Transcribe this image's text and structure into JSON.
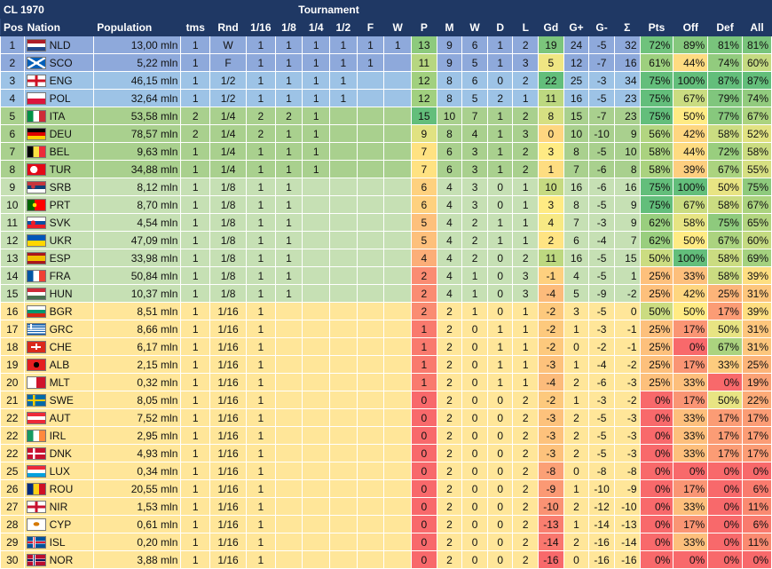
{
  "title": "CL 1970",
  "tournament_label": "Tournament",
  "headers": [
    "Pos",
    "Nation",
    "Population",
    "tms",
    "Rnd",
    "1/16",
    "1/8",
    "1/4",
    "1/2",
    "F",
    "W",
    "P",
    "M",
    "W",
    "D",
    "L",
    "Gd",
    "G+",
    "G-",
    "Σ",
    "Pts",
    "Off",
    "Def",
    "All"
  ],
  "colors": {
    "header": "#1f3864",
    "row_final": "#8ea9db",
    "row_semi": "#9dc3e6",
    "row_quarter": "#a9d08e",
    "row_eighth": "#c6e0b4",
    "row_sixteenth": "#ffe699",
    "scale_green": "#63be7b",
    "scale_yellow": "#ffeb84",
    "scale_red": "#f8696b"
  },
  "rows": [
    {
      "pos": "1",
      "code": "NLD",
      "flag": "nld-flag-icon",
      "pop": "13,00 mln",
      "tms": "1",
      "rnd": "W",
      "rounds": [
        "1",
        "1",
        "1",
        "1",
        "1",
        "1"
      ],
      "p": "13",
      "m": "9",
      "w": "6",
      "d": "1",
      "l": "2",
      "gd": "19",
      "gp": "24",
      "gm": "-5",
      "sig": "32",
      "pts": "72%",
      "off": "89%",
      "def": "81%",
      "all": "81%"
    },
    {
      "pos": "2",
      "code": "SCO",
      "flag": "sco-flag-icon",
      "pop": "5,22 mln",
      "tms": "1",
      "rnd": "F",
      "rounds": [
        "1",
        "1",
        "1",
        "1",
        "1",
        ""
      ],
      "p": "11",
      "m": "9",
      "w": "5",
      "d": "1",
      "l": "3",
      "gd": "5",
      "gp": "12",
      "gm": "-7",
      "sig": "16",
      "pts": "61%",
      "off": "44%",
      "def": "74%",
      "all": "60%"
    },
    {
      "pos": "3",
      "code": "ENG",
      "flag": "eng-flag-icon",
      "pop": "46,15 mln",
      "tms": "1",
      "rnd": "1/2",
      "rounds": [
        "1",
        "1",
        "1",
        "1",
        "",
        ""
      ],
      "p": "12",
      "m": "8",
      "w": "6",
      "d": "0",
      "l": "2",
      "gd": "22",
      "gp": "25",
      "gm": "-3",
      "sig": "34",
      "pts": "75%",
      "off": "100%",
      "def": "87%",
      "all": "87%"
    },
    {
      "pos": "4",
      "code": "POL",
      "flag": "pol-flag-icon",
      "pop": "32,64 mln",
      "tms": "1",
      "rnd": "1/2",
      "rounds": [
        "1",
        "1",
        "1",
        "1",
        "",
        ""
      ],
      "p": "12",
      "m": "8",
      "w": "5",
      "d": "2",
      "l": "1",
      "gd": "11",
      "gp": "16",
      "gm": "-5",
      "sig": "23",
      "pts": "75%",
      "off": "67%",
      "def": "79%",
      "all": "74%"
    },
    {
      "pos": "5",
      "code": "ITA",
      "flag": "ita-flag-icon",
      "pop": "53,58 mln",
      "tms": "2",
      "rnd": "1/4",
      "rounds": [
        "2",
        "2",
        "1",
        "",
        "",
        ""
      ],
      "p": "15",
      "m": "10",
      "w": "7",
      "d": "1",
      "l": "2",
      "gd": "8",
      "gp": "15",
      "gm": "-7",
      "sig": "23",
      "pts": "75%",
      "off": "50%",
      "def": "77%",
      "all": "67%"
    },
    {
      "pos": "6",
      "code": "DEU",
      "flag": "deu-flag-icon",
      "pop": "78,57 mln",
      "tms": "2",
      "rnd": "1/4",
      "rounds": [
        "2",
        "1",
        "1",
        "",
        "",
        ""
      ],
      "p": "9",
      "m": "8",
      "w": "4",
      "d": "1",
      "l": "3",
      "gd": "0",
      "gp": "10",
      "gm": "-10",
      "sig": "9",
      "pts": "56%",
      "off": "42%",
      "def": "58%",
      "all": "52%"
    },
    {
      "pos": "7",
      "code": "BEL",
      "flag": "bel-flag-icon",
      "pop": "9,63 mln",
      "tms": "1",
      "rnd": "1/4",
      "rounds": [
        "1",
        "1",
        "1",
        "",
        "",
        ""
      ],
      "p": "7",
      "m": "6",
      "w": "3",
      "d": "1",
      "l": "2",
      "gd": "3",
      "gp": "8",
      "gm": "-5",
      "sig": "10",
      "pts": "58%",
      "off": "44%",
      "def": "72%",
      "all": "58%"
    },
    {
      "pos": "8",
      "code": "TUR",
      "flag": "tur-flag-icon",
      "pop": "34,88 mln",
      "tms": "1",
      "rnd": "1/4",
      "rounds": [
        "1",
        "1",
        "1",
        "",
        "",
        ""
      ],
      "p": "7",
      "m": "6",
      "w": "3",
      "d": "1",
      "l": "2",
      "gd": "1",
      "gp": "7",
      "gm": "-6",
      "sig": "8",
      "pts": "58%",
      "off": "39%",
      "def": "67%",
      "all": "55%"
    },
    {
      "pos": "9",
      "code": "SRB",
      "flag": "srb-flag-icon",
      "pop": "8,12 mln",
      "tms": "1",
      "rnd": "1/8",
      "rounds": [
        "1",
        "1",
        "",
        "",
        "",
        ""
      ],
      "p": "6",
      "m": "4",
      "w": "3",
      "d": "0",
      "l": "1",
      "gd": "10",
      "gp": "16",
      "gm": "-6",
      "sig": "16",
      "pts": "75%",
      "off": "100%",
      "def": "50%",
      "all": "75%"
    },
    {
      "pos": "10",
      "code": "PRT",
      "flag": "prt-flag-icon",
      "pop": "8,70 mln",
      "tms": "1",
      "rnd": "1/8",
      "rounds": [
        "1",
        "1",
        "",
        "",
        "",
        ""
      ],
      "p": "6",
      "m": "4",
      "w": "3",
      "d": "0",
      "l": "1",
      "gd": "3",
      "gp": "8",
      "gm": "-5",
      "sig": "9",
      "pts": "75%",
      "off": "67%",
      "def": "58%",
      "all": "67%"
    },
    {
      "pos": "11",
      "code": "SVK",
      "flag": "svk-flag-icon",
      "pop": "4,54 mln",
      "tms": "1",
      "rnd": "1/8",
      "rounds": [
        "1",
        "1",
        "",
        "",
        "",
        ""
      ],
      "p": "5",
      "m": "4",
      "w": "2",
      "d": "1",
      "l": "1",
      "gd": "4",
      "gp": "7",
      "gm": "-3",
      "sig": "9",
      "pts": "62%",
      "off": "58%",
      "def": "75%",
      "all": "65%"
    },
    {
      "pos": "12",
      "code": "UKR",
      "flag": "ukr-flag-icon",
      "pop": "47,09 mln",
      "tms": "1",
      "rnd": "1/8",
      "rounds": [
        "1",
        "1",
        "",
        "",
        "",
        ""
      ],
      "p": "5",
      "m": "4",
      "w": "2",
      "d": "1",
      "l": "1",
      "gd": "2",
      "gp": "6",
      "gm": "-4",
      "sig": "7",
      "pts": "62%",
      "off": "50%",
      "def": "67%",
      "all": "60%"
    },
    {
      "pos": "13",
      "code": "ESP",
      "flag": "esp-flag-icon",
      "pop": "33,98 mln",
      "tms": "1",
      "rnd": "1/8",
      "rounds": [
        "1",
        "1",
        "",
        "",
        "",
        ""
      ],
      "p": "4",
      "m": "4",
      "w": "2",
      "d": "0",
      "l": "2",
      "gd": "11",
      "gp": "16",
      "gm": "-5",
      "sig": "15",
      "pts": "50%",
      "off": "100%",
      "def": "58%",
      "all": "69%"
    },
    {
      "pos": "14",
      "code": "FRA",
      "flag": "fra-flag-icon",
      "pop": "50,84 mln",
      "tms": "1",
      "rnd": "1/8",
      "rounds": [
        "1",
        "1",
        "",
        "",
        "",
        ""
      ],
      "p": "2",
      "m": "4",
      "w": "1",
      "d": "0",
      "l": "3",
      "gd": "-1",
      "gp": "4",
      "gm": "-5",
      "sig": "1",
      "pts": "25%",
      "off": "33%",
      "def": "58%",
      "all": "39%"
    },
    {
      "pos": "15",
      "code": "HUN",
      "flag": "hun-flag-icon",
      "pop": "10,37 mln",
      "tms": "1",
      "rnd": "1/8",
      "rounds": [
        "1",
        "1",
        "",
        "",
        "",
        ""
      ],
      "p": "2",
      "m": "4",
      "w": "1",
      "d": "0",
      "l": "3",
      "gd": "-4",
      "gp": "5",
      "gm": "-9",
      "sig": "-2",
      "pts": "25%",
      "off": "42%",
      "def": "25%",
      "all": "31%"
    },
    {
      "pos": "16",
      "code": "BGR",
      "flag": "bgr-flag-icon",
      "pop": "8,51 mln",
      "tms": "1",
      "rnd": "1/16",
      "rounds": [
        "1",
        "",
        "",
        "",
        "",
        ""
      ],
      "p": "2",
      "m": "2",
      "w": "1",
      "d": "0",
      "l": "1",
      "gd": "-2",
      "gp": "3",
      "gm": "-5",
      "sig": "0",
      "pts": "50%",
      "off": "50%",
      "def": "17%",
      "all": "39%"
    },
    {
      "pos": "17",
      "code": "GRC",
      "flag": "grc-flag-icon",
      "pop": "8,66 mln",
      "tms": "1",
      "rnd": "1/16",
      "rounds": [
        "1",
        "",
        "",
        "",
        "",
        ""
      ],
      "p": "1",
      "m": "2",
      "w": "0",
      "d": "1",
      "l": "1",
      "gd": "-2",
      "gp": "1",
      "gm": "-3",
      "sig": "-1",
      "pts": "25%",
      "off": "17%",
      "def": "50%",
      "all": "31%"
    },
    {
      "pos": "18",
      "code": "CHE",
      "flag": "che-flag-icon",
      "pop": "6,17 mln",
      "tms": "1",
      "rnd": "1/16",
      "rounds": [
        "1",
        "",
        "",
        "",
        "",
        ""
      ],
      "p": "1",
      "m": "2",
      "w": "0",
      "d": "1",
      "l": "1",
      "gd": "-2",
      "gp": "0",
      "gm": "-2",
      "sig": "-1",
      "pts": "25%",
      "off": "0%",
      "def": "67%",
      "all": "31%"
    },
    {
      "pos": "19",
      "code": "ALB",
      "flag": "alb-flag-icon",
      "pop": "2,15 mln",
      "tms": "1",
      "rnd": "1/16",
      "rounds": [
        "1",
        "",
        "",
        "",
        "",
        ""
      ],
      "p": "1",
      "m": "2",
      "w": "0",
      "d": "1",
      "l": "1",
      "gd": "-3",
      "gp": "1",
      "gm": "-4",
      "sig": "-2",
      "pts": "25%",
      "off": "17%",
      "def": "33%",
      "all": "25%"
    },
    {
      "pos": "20",
      "code": "MLT",
      "flag": "mlt-flag-icon",
      "pop": "0,32 mln",
      "tms": "1",
      "rnd": "1/16",
      "rounds": [
        "1",
        "",
        "",
        "",
        "",
        ""
      ],
      "p": "1",
      "m": "2",
      "w": "0",
      "d": "1",
      "l": "1",
      "gd": "-4",
      "gp": "2",
      "gm": "-6",
      "sig": "-3",
      "pts": "25%",
      "off": "33%",
      "def": "0%",
      "all": "19%"
    },
    {
      "pos": "21",
      "code": "SWE",
      "flag": "swe-flag-icon",
      "pop": "8,05 mln",
      "tms": "1",
      "rnd": "1/16",
      "rounds": [
        "1",
        "",
        "",
        "",
        "",
        ""
      ],
      "p": "0",
      "m": "2",
      "w": "0",
      "d": "0",
      "l": "2",
      "gd": "-2",
      "gp": "1",
      "gm": "-3",
      "sig": "-2",
      "pts": "0%",
      "off": "17%",
      "def": "50%",
      "all": "22%"
    },
    {
      "pos": "22",
      "code": "AUT",
      "flag": "aut-flag-icon",
      "pop": "7,52 mln",
      "tms": "1",
      "rnd": "1/16",
      "rounds": [
        "1",
        "",
        "",
        "",
        "",
        ""
      ],
      "p": "0",
      "m": "2",
      "w": "0",
      "d": "0",
      "l": "2",
      "gd": "-3",
      "gp": "2",
      "gm": "-5",
      "sig": "-3",
      "pts": "0%",
      "off": "33%",
      "def": "17%",
      "all": "17%"
    },
    {
      "pos": "22",
      "code": "IRL",
      "flag": "irl-flag-icon",
      "pop": "2,95 mln",
      "tms": "1",
      "rnd": "1/16",
      "rounds": [
        "1",
        "",
        "",
        "",
        "",
        ""
      ],
      "p": "0",
      "m": "2",
      "w": "0",
      "d": "0",
      "l": "2",
      "gd": "-3",
      "gp": "2",
      "gm": "-5",
      "sig": "-3",
      "pts": "0%",
      "off": "33%",
      "def": "17%",
      "all": "17%"
    },
    {
      "pos": "22",
      "code": "DNK",
      "flag": "dnk-flag-icon",
      "pop": "4,93 mln",
      "tms": "1",
      "rnd": "1/16",
      "rounds": [
        "1",
        "",
        "",
        "",
        "",
        ""
      ],
      "p": "0",
      "m": "2",
      "w": "0",
      "d": "0",
      "l": "2",
      "gd": "-3",
      "gp": "2",
      "gm": "-5",
      "sig": "-3",
      "pts": "0%",
      "off": "33%",
      "def": "17%",
      "all": "17%"
    },
    {
      "pos": "25",
      "code": "LUX",
      "flag": "lux-flag-icon",
      "pop": "0,34 mln",
      "tms": "1",
      "rnd": "1/16",
      "rounds": [
        "1",
        "",
        "",
        "",
        "",
        ""
      ],
      "p": "0",
      "m": "2",
      "w": "0",
      "d": "0",
      "l": "2",
      "gd": "-8",
      "gp": "0",
      "gm": "-8",
      "sig": "-8",
      "pts": "0%",
      "off": "0%",
      "def": "0%",
      "all": "0%"
    },
    {
      "pos": "26",
      "code": "ROU",
      "flag": "rou-flag-icon",
      "pop": "20,55 mln",
      "tms": "1",
      "rnd": "1/16",
      "rounds": [
        "1",
        "",
        "",
        "",
        "",
        ""
      ],
      "p": "0",
      "m": "2",
      "w": "0",
      "d": "0",
      "l": "2",
      "gd": "-9",
      "gp": "1",
      "gm": "-10",
      "sig": "-9",
      "pts": "0%",
      "off": "17%",
      "def": "0%",
      "all": "6%"
    },
    {
      "pos": "27",
      "code": "NIR",
      "flag": "nir-flag-icon",
      "pop": "1,53 mln",
      "tms": "1",
      "rnd": "1/16",
      "rounds": [
        "1",
        "",
        "",
        "",
        "",
        ""
      ],
      "p": "0",
      "m": "2",
      "w": "0",
      "d": "0",
      "l": "2",
      "gd": "-10",
      "gp": "2",
      "gm": "-12",
      "sig": "-10",
      "pts": "0%",
      "off": "33%",
      "def": "0%",
      "all": "11%"
    },
    {
      "pos": "28",
      "code": "CYP",
      "flag": "cyp-flag-icon",
      "pop": "0,61 mln",
      "tms": "1",
      "rnd": "1/16",
      "rounds": [
        "1",
        "",
        "",
        "",
        "",
        ""
      ],
      "p": "0",
      "m": "2",
      "w": "0",
      "d": "0",
      "l": "2",
      "gd": "-13",
      "gp": "1",
      "gm": "-14",
      "sig": "-13",
      "pts": "0%",
      "off": "17%",
      "def": "0%",
      "all": "6%"
    },
    {
      "pos": "29",
      "code": "ISL",
      "flag": "isl-flag-icon",
      "pop": "0,20 mln",
      "tms": "1",
      "rnd": "1/16",
      "rounds": [
        "1",
        "",
        "",
        "",
        "",
        ""
      ],
      "p": "0",
      "m": "2",
      "w": "0",
      "d": "0",
      "l": "2",
      "gd": "-14",
      "gp": "2",
      "gm": "-16",
      "sig": "-14",
      "pts": "0%",
      "off": "33%",
      "def": "0%",
      "all": "11%"
    },
    {
      "pos": "30",
      "code": "NOR",
      "flag": "nor-flag-icon",
      "pop": "3,88 mln",
      "tms": "1",
      "rnd": "1/16",
      "rounds": [
        "1",
        "",
        "",
        "",
        "",
        ""
      ],
      "p": "0",
      "m": "2",
      "w": "0",
      "d": "0",
      "l": "2",
      "gd": "-16",
      "gp": "0",
      "gm": "-16",
      "sig": "-16",
      "pts": "0%",
      "off": "0%",
      "def": "0%",
      "all": "0%"
    }
  ]
}
